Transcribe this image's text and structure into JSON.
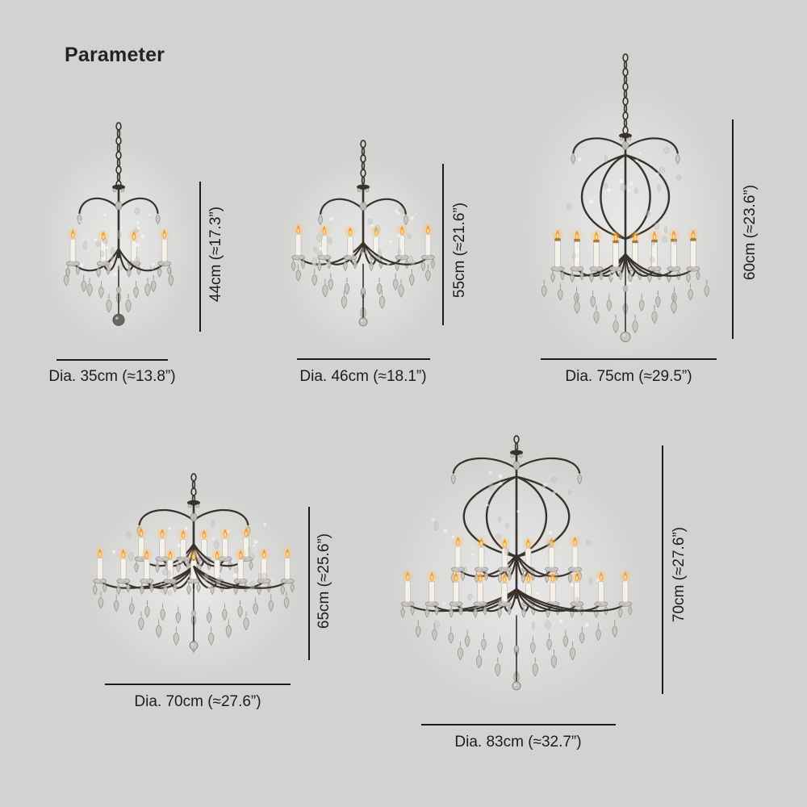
{
  "page": {
    "title": "Parameter"
  },
  "colors": {
    "background": "#d2d2d1",
    "dimension_line": "#1b1b1b",
    "label_text": "#1d1d1d",
    "frame": "#38322d",
    "candle": "#f4f1ea",
    "candle_edge": "#c6c0b6",
    "flame": "#ef9a30",
    "flame_core": "#ffe2a0",
    "glow": "#ffc069",
    "crystal": "#c8c4bf",
    "crystal_edge": "#8f8a84",
    "brass": "#a57a3e",
    "photo_halo": "#ffffff"
  },
  "items": [
    {
      "height_label": "44cm (≈17.3”)",
      "dia_label": "Dia. 35cm (≈13.8”)"
    },
    {
      "height_label": "55cm (≈21.6”)",
      "dia_label": "Dia. 46cm (≈18.1”)"
    },
    {
      "height_label": "60cm (≈23.6”)",
      "dia_label": "Dia. 75cm (≈29.5”)"
    },
    {
      "height_label": "65cm (≈25.6”)",
      "dia_label": "Dia. 70cm (≈27.6”)"
    },
    {
      "height_label": "70cm (≈27.6”)",
      "dia_label": "Dia. 83cm (≈32.7”)"
    }
  ]
}
